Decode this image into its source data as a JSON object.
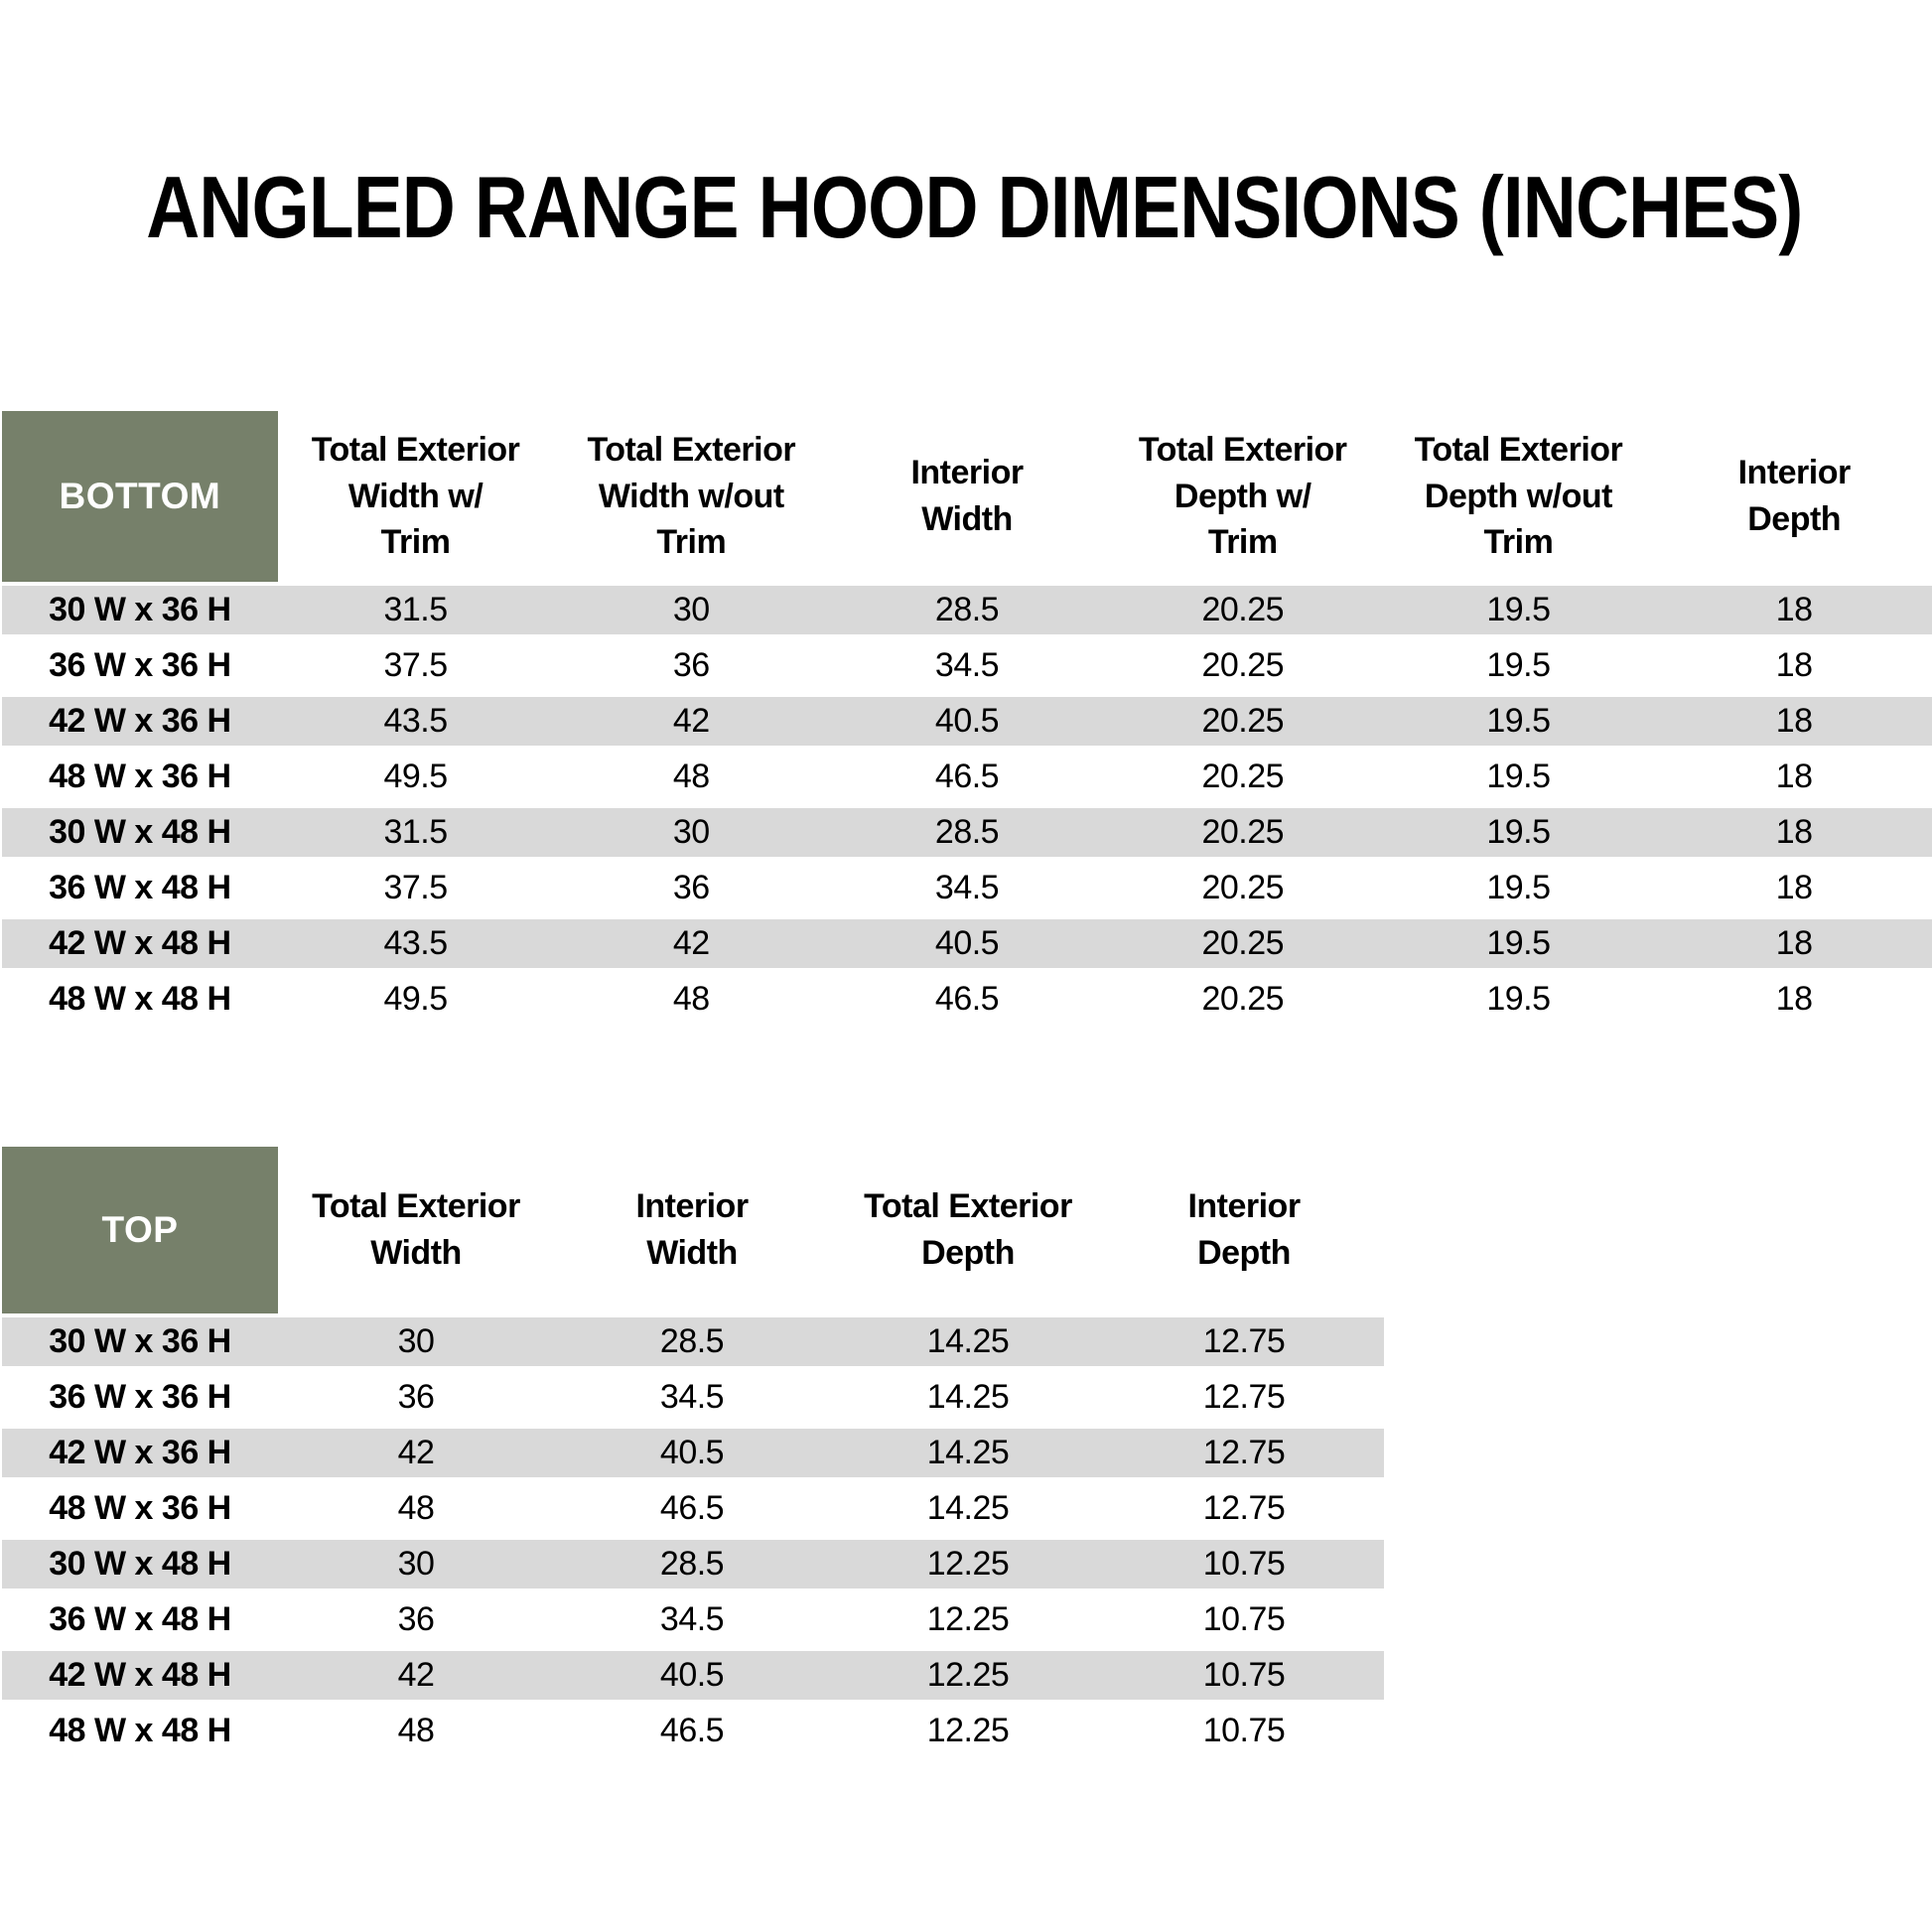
{
  "title": "ANGLED RANGE HOOD DIMENSIONS (INCHES)",
  "colors": {
    "header_green": "#76806A",
    "row_gray": "#D9D9D9",
    "row_white": "#FFFFFF",
    "header_text": "#FFFFFF",
    "body_text": "#000000"
  },
  "bottom_table": {
    "corner_label": "BOTTOM",
    "columns": [
      "Total Exterior\nWidth w/\nTrim",
      "Total Exterior\nWidth w/out\nTrim",
      "Interior\nWidth",
      "Total Exterior\nDepth w/\nTrim",
      "Total Exterior\nDepth w/out\nTrim",
      "Interior\nDepth"
    ],
    "rows": [
      {
        "size": "30 W x 36 H",
        "values": [
          "31.5",
          "30",
          "28.5",
          "20.25",
          "19.5",
          "18"
        ]
      },
      {
        "size": "36 W x 36 H",
        "values": [
          "37.5",
          "36",
          "34.5",
          "20.25",
          "19.5",
          "18"
        ]
      },
      {
        "size": "42 W x 36 H",
        "values": [
          "43.5",
          "42",
          "40.5",
          "20.25",
          "19.5",
          "18"
        ]
      },
      {
        "size": "48 W x 36 H",
        "values": [
          "49.5",
          "48",
          "46.5",
          "20.25",
          "19.5",
          "18"
        ]
      },
      {
        "size": "30 W x 48 H",
        "values": [
          "31.5",
          "30",
          "28.5",
          "20.25",
          "19.5",
          "18"
        ]
      },
      {
        "size": "36 W x 48 H",
        "values": [
          "37.5",
          "36",
          "34.5",
          "20.25",
          "19.5",
          "18"
        ]
      },
      {
        "size": "42 W x 48 H",
        "values": [
          "43.5",
          "42",
          "40.5",
          "20.25",
          "19.5",
          "18"
        ]
      },
      {
        "size": "48 W x 48 H",
        "values": [
          "49.5",
          "48",
          "46.5",
          "20.25",
          "19.5",
          "18"
        ]
      }
    ]
  },
  "top_table": {
    "corner_label": "TOP",
    "columns": [
      "Total Exterior\nWidth",
      "Interior\nWidth",
      "Total Exterior\nDepth",
      "Interior\nDepth"
    ],
    "rows": [
      {
        "size": "30 W x 36 H",
        "values": [
          "30",
          "28.5",
          "14.25",
          "12.75"
        ]
      },
      {
        "size": "36 W x 36 H",
        "values": [
          "36",
          "34.5",
          "14.25",
          "12.75"
        ]
      },
      {
        "size": "42 W x 36 H",
        "values": [
          "42",
          "40.5",
          "14.25",
          "12.75"
        ]
      },
      {
        "size": "48 W x 36 H",
        "values": [
          "48",
          "46.5",
          "14.25",
          "12.75"
        ]
      },
      {
        "size": "30 W x 48 H",
        "values": [
          "30",
          "28.5",
          "12.25",
          "10.75"
        ]
      },
      {
        "size": "36 W x 48 H",
        "values": [
          "36",
          "34.5",
          "12.25",
          "10.75"
        ]
      },
      {
        "size": "42 W x 48 H",
        "values": [
          "42",
          "40.5",
          "12.25",
          "10.75"
        ]
      },
      {
        "size": "48 W x 48 H",
        "values": [
          "48",
          "46.5",
          "12.25",
          "10.75"
        ]
      }
    ]
  }
}
